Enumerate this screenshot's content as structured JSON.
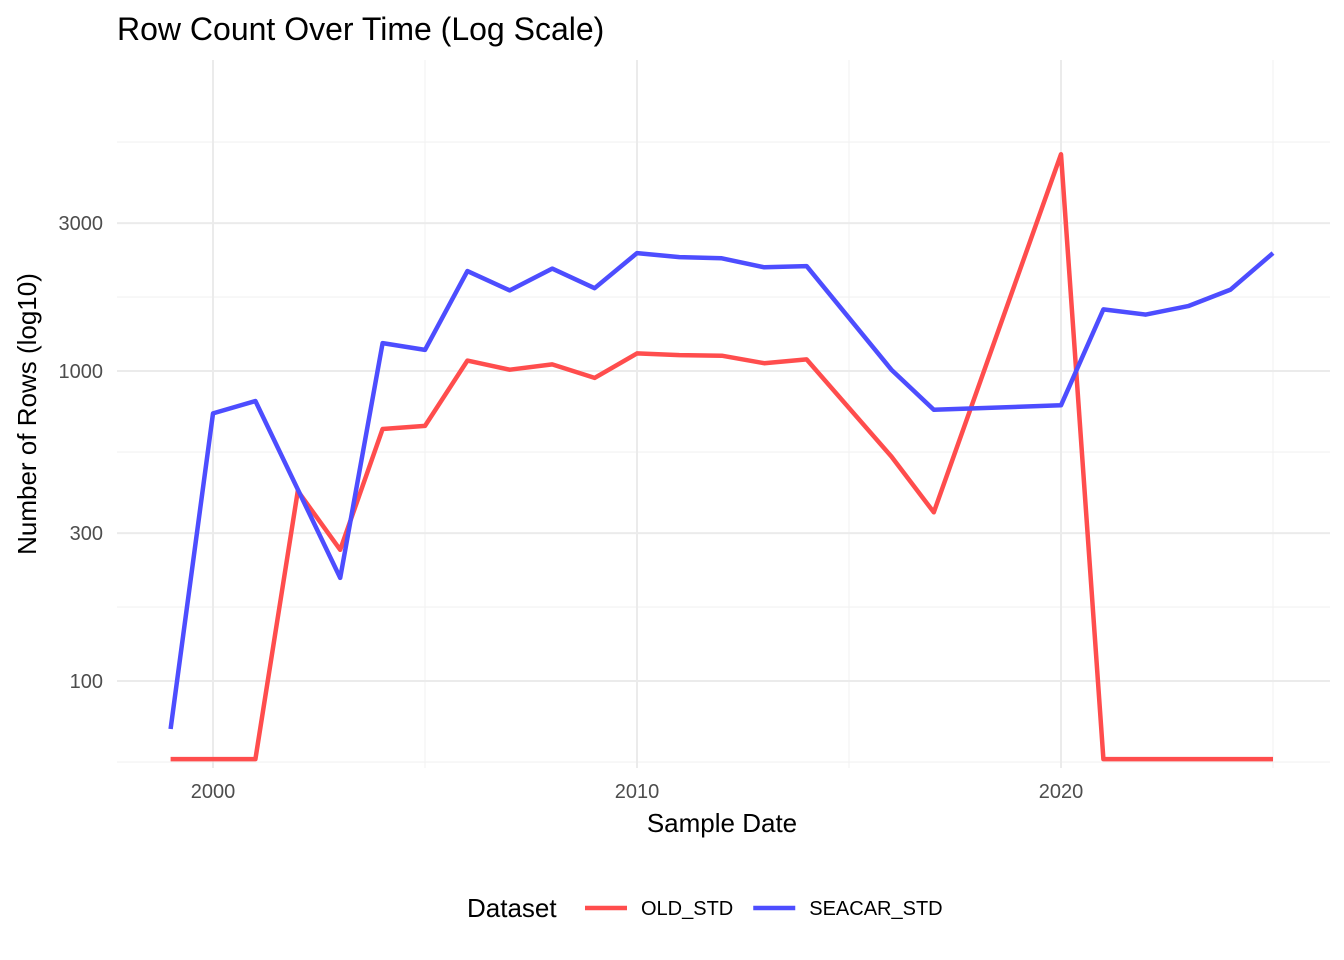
{
  "chart_data": {
    "type": "line",
    "title": "Row Count Over Time (Log Scale)",
    "xlabel": "Sample Date",
    "ylabel": "Number of Rows (log10)",
    "y_scale": "log10",
    "x_ticks": [
      2000,
      2010,
      2020
    ],
    "x_tick_labels": [
      "2000",
      "2010",
      "2020"
    ],
    "y_ticks": [
      100,
      300,
      1000,
      3000
    ],
    "y_tick_labels": [
      "100",
      "300",
      "1000",
      "3000"
    ],
    "xlim": [
      1998.2,
      2026.5
    ],
    "ylim": [
      56,
      5600
    ],
    "grid": true,
    "legend": {
      "title": "Dataset",
      "position": "bottom"
    },
    "series": [
      {
        "name": "OLD_STD",
        "color": "#FF4D4D",
        "x": [
          1999,
          2000,
          2001,
          2002,
          2003,
          2004,
          2005,
          2006,
          2007,
          2008,
          2009,
          2010,
          2011,
          2012,
          2013,
          2014,
          2016,
          2017,
          2020,
          2021,
          2022,
          2023,
          2024,
          2025
        ],
        "y": [
          56,
          56,
          56,
          410,
          265,
          650,
          665,
          1080,
          1010,
          1050,
          950,
          1140,
          1125,
          1120,
          1060,
          1090,
          530,
          350,
          5000,
          56,
          56,
          56,
          56,
          56
        ]
      },
      {
        "name": "SEACAR_STD",
        "color": "#4D4DFF",
        "x": [
          1999,
          2000,
          2001,
          2003,
          2004,
          2005,
          2006,
          2007,
          2008,
          2009,
          2010,
          2011,
          2012,
          2013,
          2014,
          2016,
          2017,
          2020,
          2021,
          2022,
          2023,
          2024,
          2025
        ],
        "y": [
          70,
          730,
          800,
          215,
          1230,
          1170,
          2100,
          1820,
          2140,
          1850,
          2400,
          2330,
          2310,
          2160,
          2180,
          1010,
          750,
          775,
          1580,
          1520,
          1620,
          1830,
          2400
        ]
      }
    ]
  }
}
